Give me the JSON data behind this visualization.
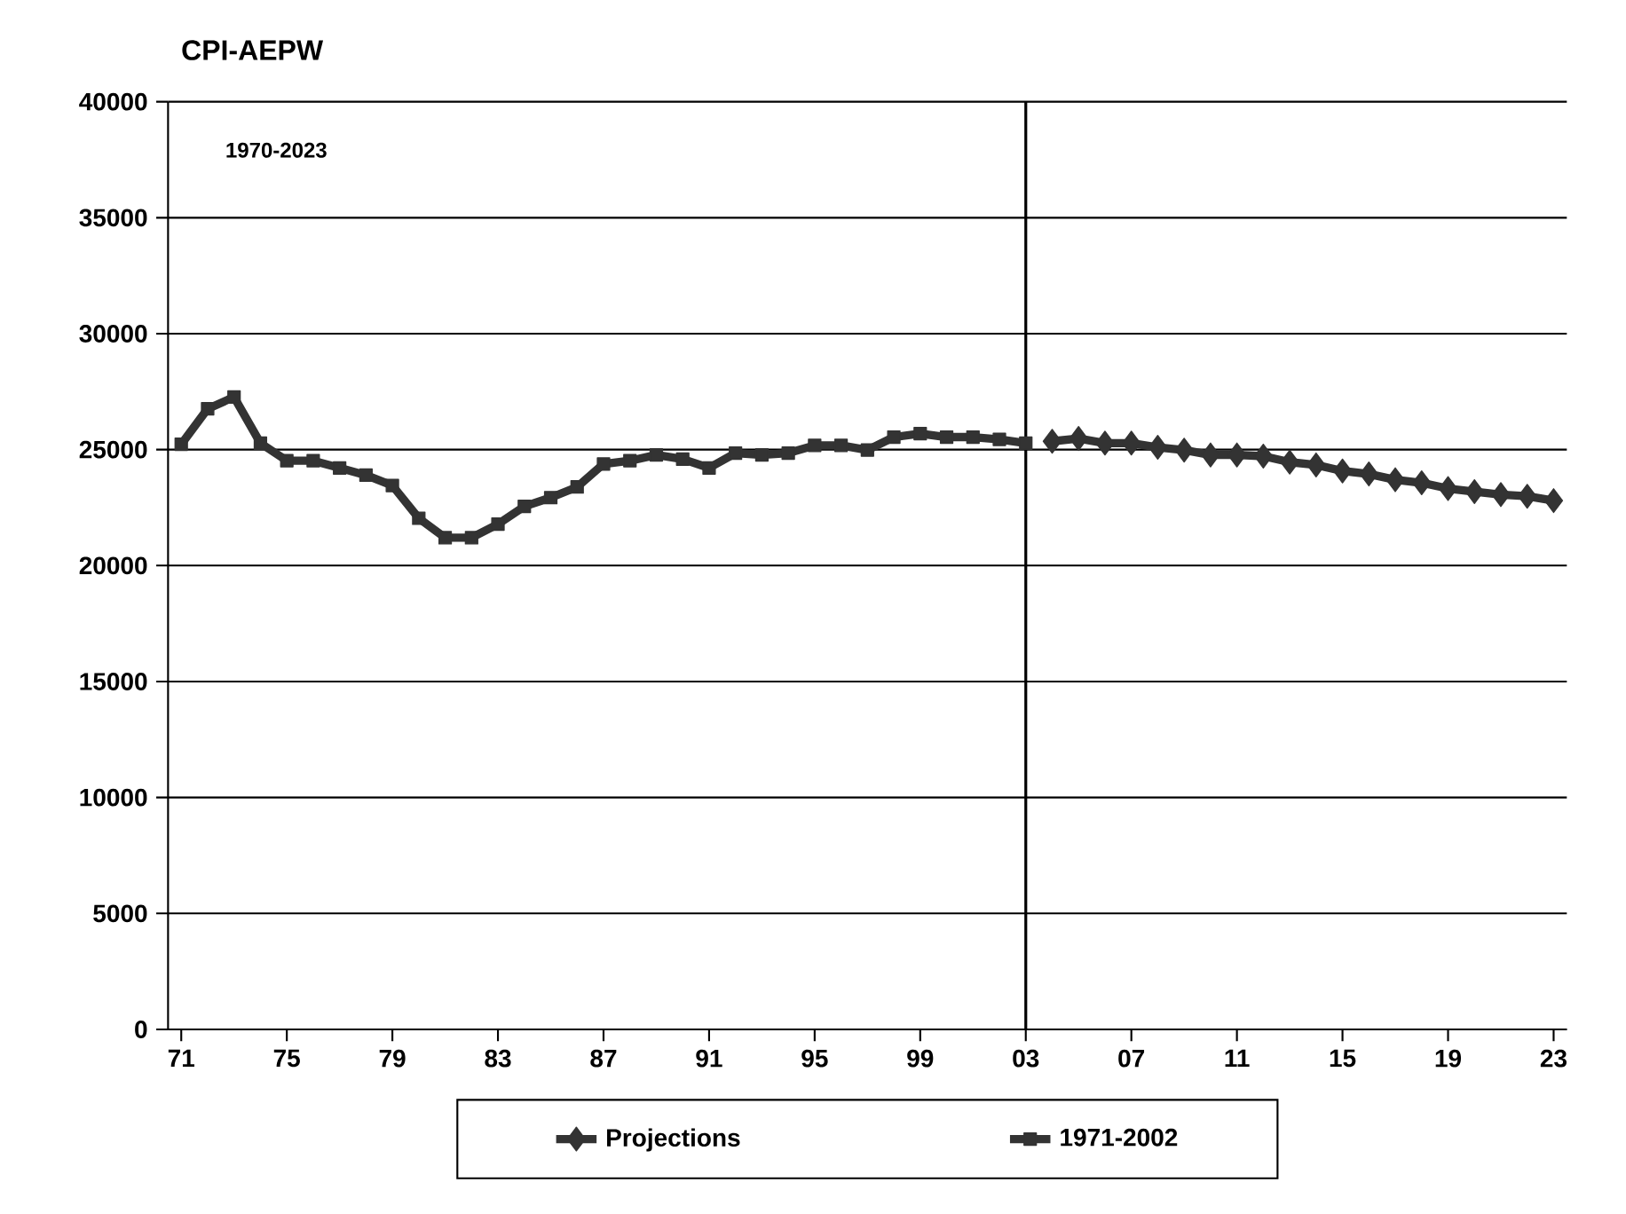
{
  "chart_data": {
    "type": "line",
    "title": "CPI-AEPW",
    "annotations": [
      "1970-2023"
    ],
    "xlim": [
      1970.5,
      2023.5
    ],
    "xticks": [
      {
        "value": 1971,
        "label": "71"
      },
      {
        "value": 1975,
        "label": "75"
      },
      {
        "value": 1979,
        "label": "79"
      },
      {
        "value": 1983,
        "label": "83"
      },
      {
        "value": 1987,
        "label": "87"
      },
      {
        "value": 1991,
        "label": "91"
      },
      {
        "value": 1995,
        "label": "95"
      },
      {
        "value": 1999,
        "label": "99"
      },
      {
        "value": 2003,
        "label": "03"
      },
      {
        "value": 2007,
        "label": "07"
      },
      {
        "value": 2011,
        "label": "11"
      },
      {
        "value": 2015,
        "label": "15"
      },
      {
        "value": 2019,
        "label": "19"
      },
      {
        "value": 2023,
        "label": "23"
      }
    ],
    "ylim": [
      0,
      40000
    ],
    "yticks": [
      0,
      5000,
      10000,
      15000,
      20000,
      25000,
      30000,
      35000,
      40000
    ],
    "grid": "y",
    "legend": "bottom",
    "ref_lines": [
      {
        "axis": "x",
        "value": 2003,
        "color": "#000000"
      }
    ],
    "series": [
      {
        "name": "Projections",
        "color": "#333333",
        "marker": "diamond",
        "x": [
          2004,
          2005,
          2006,
          2007,
          2008,
          2009,
          2010,
          2011,
          2012,
          2013,
          2014,
          2015,
          2016,
          2017,
          2018,
          2019,
          2020,
          2021,
          2022,
          2023
        ],
        "values": [
          25360,
          25480,
          25280,
          25280,
          25100,
          24980,
          24770,
          24770,
          24720,
          24460,
          24340,
          24080,
          23950,
          23700,
          23570,
          23320,
          23190,
          23060,
          22990,
          22800
        ]
      },
      {
        "name": "1971-2002",
        "color": "#333333",
        "marker": "square",
        "x": [
          1971,
          1972,
          1973,
          1974,
          1975,
          1976,
          1977,
          1978,
          1979,
          1980,
          1981,
          1982,
          1983,
          1984,
          1985,
          1986,
          1987,
          1988,
          1989,
          1990,
          1991,
          1992,
          1993,
          1994,
          1995,
          1996,
          1997,
          1998,
          1999,
          2000,
          2001,
          2002,
          2003
        ],
        "values": [
          25230,
          26760,
          27270,
          25280,
          24520,
          24520,
          24210,
          23900,
          23450,
          22040,
          21200,
          21200,
          21790,
          22550,
          22930,
          23390,
          24380,
          24520,
          24770,
          24590,
          24210,
          24850,
          24770,
          24850,
          25180,
          25180,
          24980,
          25540,
          25690,
          25540,
          25540,
          25440,
          25280
        ]
      }
    ]
  }
}
